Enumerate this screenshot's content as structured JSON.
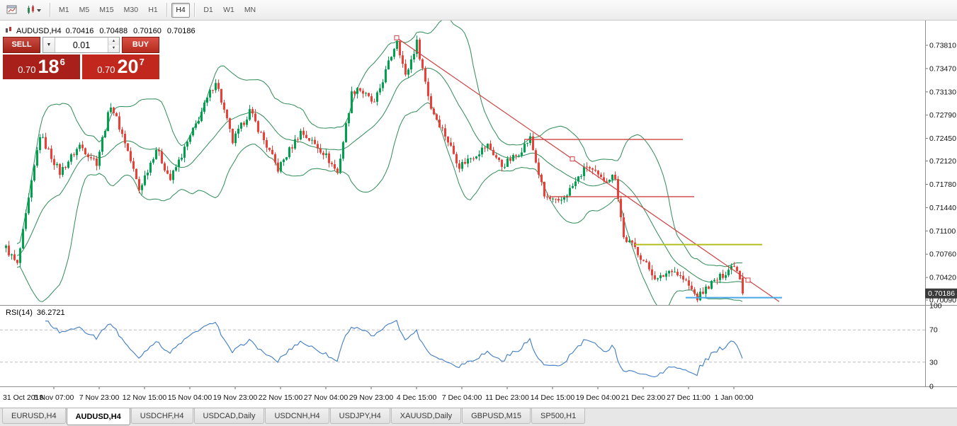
{
  "toolbar": {
    "timeframes": [
      "M1",
      "M5",
      "M15",
      "M30",
      "H1",
      "H4",
      "D1",
      "W1",
      "MN"
    ],
    "active_timeframe": "H4",
    "separators_before": [
      "H4",
      "D1"
    ]
  },
  "icons": {
    "caret_down": "▼",
    "spinner_up": "▲",
    "spinner_down": "▼"
  },
  "chart": {
    "symbol": "AUDUSD,H4",
    "open": "0.70416",
    "high": "0.70488",
    "low": "0.70160",
    "close": "0.70186"
  },
  "trade_panel": {
    "sell_label": "SELL",
    "buy_label": "BUY",
    "volume": "0.01",
    "sell_price": {
      "prefix": "0.70",
      "big": "18",
      "sup": "6"
    },
    "buy_price": {
      "prefix": "0.70",
      "big": "20",
      "sup": "7"
    }
  },
  "tabs": {
    "active": "AUDUSD,H4",
    "items": [
      "EURUSD,H4",
      "AUDUSD,H4",
      "USDCHF,H4",
      "USDCAD,Daily",
      "USDCNH,H4",
      "USDJPY,H4",
      "XAUUSD,Daily",
      "GBPUSD,M15",
      "SP500,H1"
    ]
  },
  "chart_data": {
    "type": "candlestick",
    "symbol": "AUDUSD",
    "timeframe": "H4",
    "price_range": [
      0.7009,
      0.7381
    ],
    "price_axis_ticks": [
      "0.73810",
      "0.73470",
      "0.73130",
      "0.72790",
      "0.72450",
      "0.72120",
      "0.71780",
      "0.71440",
      "0.71100",
      "0.70760",
      "0.70420",
      "0.70090"
    ],
    "current_price": "0.70186",
    "last_candle": {
      "open": 0.70416,
      "high": 0.70488,
      "low": 0.7016,
      "close": 0.70186
    },
    "candle_count": 261,
    "close_anchors": [
      [
        0,
        0.7085
      ],
      [
        4,
        0.706
      ],
      [
        12,
        0.725
      ],
      [
        19,
        0.7195
      ],
      [
        26,
        0.7235
      ],
      [
        32,
        0.721
      ],
      [
        37,
        0.7295
      ],
      [
        42,
        0.724
      ],
      [
        47,
        0.717
      ],
      [
        53,
        0.723
      ],
      [
        58,
        0.7185
      ],
      [
        67,
        0.7265
      ],
      [
        74,
        0.733
      ],
      [
        80,
        0.724
      ],
      [
        86,
        0.7285
      ],
      [
        96,
        0.72
      ],
      [
        104,
        0.7255
      ],
      [
        112,
        0.7225
      ],
      [
        117,
        0.7195
      ],
      [
        122,
        0.731
      ],
      [
        124,
        0.732
      ],
      [
        130,
        0.7295
      ],
      [
        138,
        0.739
      ],
      [
        141,
        0.7335
      ],
      [
        145,
        0.7385
      ],
      [
        150,
        0.729
      ],
      [
        155,
        0.725
      ],
      [
        160,
        0.7205
      ],
      [
        165,
        0.722
      ],
      [
        170,
        0.7235
      ],
      [
        175,
        0.7205
      ],
      [
        180,
        0.722
      ],
      [
        185,
        0.7245
      ],
      [
        190,
        0.716
      ],
      [
        195,
        0.715
      ],
      [
        200,
        0.7175
      ],
      [
        205,
        0.7205
      ],
      [
        210,
        0.7185
      ],
      [
        215,
        0.719
      ],
      [
        218,
        0.71
      ],
      [
        222,
        0.7085
      ],
      [
        226,
        0.706
      ],
      [
        230,
        0.7038
      ],
      [
        235,
        0.7055
      ],
      [
        240,
        0.7035
      ],
      [
        244,
        0.7012
      ],
      [
        248,
        0.703
      ],
      [
        252,
        0.7042
      ],
      [
        257,
        0.7062
      ],
      [
        259,
        0.7043
      ],
      [
        260,
        0.7019
      ]
    ],
    "colors": {
      "up": "#00a14e",
      "down": "#ef3e36",
      "bollinger": "#2e8b57",
      "badge_bg": "#3a3a3a"
    },
    "indicators": {
      "bollinger": {
        "period": 20,
        "deviation": 2
      },
      "rsi": {
        "label": "RSI(14)",
        "value": "36.2721",
        "period": 14,
        "color": "#3f7cc4",
        "levels": [
          100,
          70,
          30,
          0
        ],
        "dashed_levels": [
          70,
          30
        ]
      }
    },
    "objects": [
      {
        "type": "trendline",
        "name": "descending-trendline",
        "color": "#cf4242",
        "from": [
          138,
          0.7392
        ],
        "to": [
          262,
          0.7038
        ],
        "ray_to": 273,
        "markers": [
          [
            138,
            0.7392
          ],
          [
            200,
            0.7215
          ],
          [
            262,
            0.7038
          ]
        ]
      },
      {
        "type": "hline",
        "name": "resistance-line-upper",
        "color": "#cf4242",
        "price": 0.72435,
        "from": 183,
        "to": 239,
        "width": 1.4
      },
      {
        "type": "hline",
        "name": "resistance-line-lower",
        "color": "#cf4242",
        "price": 0.716,
        "from": 192,
        "to": 243,
        "width": 1.4
      },
      {
        "type": "hline",
        "name": "support-line-yellow",
        "color": "#b3bf1f",
        "price": 0.709,
        "from": 222,
        "to": 267,
        "width": 2
      },
      {
        "type": "hline",
        "name": "support-line-blue",
        "color": "#49a8e8",
        "price": 0.70125,
        "from": 240,
        "to": 274,
        "width": 2
      }
    ],
    "time_axis": [
      "31 Oct 2018",
      "5 Nov 07:00",
      "7 Nov 23:00",
      "12 Nov 15:00",
      "15 Nov 04:00",
      "19 Nov 23:00",
      "22 Nov 15:00",
      "27 Nov 04:00",
      "29 Nov 23:00",
      "4 Dec 15:00",
      "7 Dec 04:00",
      "11 Dec 23:00",
      "14 Dec 15:00",
      "19 Dec 04:00",
      "21 Dec 23:00",
      "27 Dec 11:00",
      "1 Jan 00:00"
    ]
  }
}
